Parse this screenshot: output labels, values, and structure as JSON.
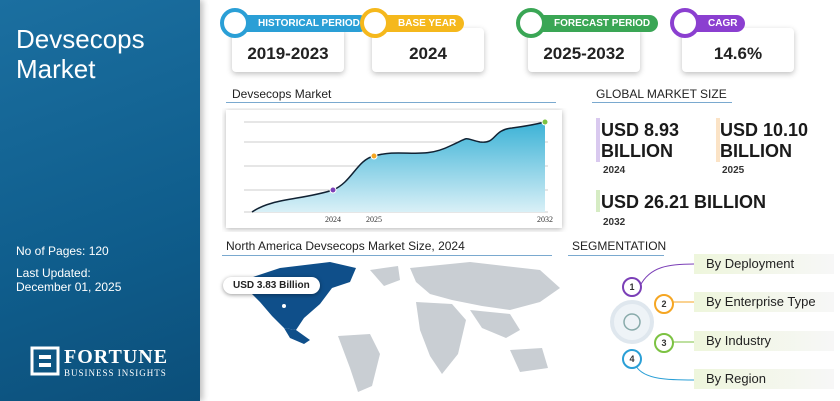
{
  "sidebar": {
    "title": "Devsecops Market",
    "pages": "No of Pages: 120",
    "updated_label": "Last Updated:",
    "updated": "December 01, 2025",
    "brand": "FORTUNE",
    "brand_sub": "BUSINESS INSIGHTS"
  },
  "stats": [
    {
      "label": "HISTORICAL PERIOD",
      "value": "2019-2023"
    },
    {
      "label": "BASE YEAR",
      "value": "2024"
    },
    {
      "label": "FORECAST PERIOD",
      "value": "2025-2032"
    },
    {
      "label": "CAGR",
      "value": "14.6%"
    }
  ],
  "trend": {
    "title": "Devsecops Market",
    "x_labels": [
      "2024",
      "2025",
      "2032"
    ]
  },
  "global": {
    "title": "GLOBAL MARKET SIZE",
    "items": [
      {
        "value": "USD 8.93 BILLION",
        "year": "2024"
      },
      {
        "value": "USD 10.10 BILLION",
        "year": "2025"
      },
      {
        "value": "USD 26.21 BILLION",
        "year": "2032"
      }
    ]
  },
  "region": {
    "title": "North America Devsecops Market Size, 2024",
    "callout": "USD 3.83 Billion"
  },
  "segmentation": {
    "title": "SEGMENTATION",
    "items": [
      {
        "number": "1",
        "label": "By Deployment"
      },
      {
        "number": "2",
        "label": "By Enterprise Type"
      },
      {
        "number": "3",
        "label": "By Industry"
      },
      {
        "number": "4",
        "label": "By Region"
      }
    ]
  }
}
